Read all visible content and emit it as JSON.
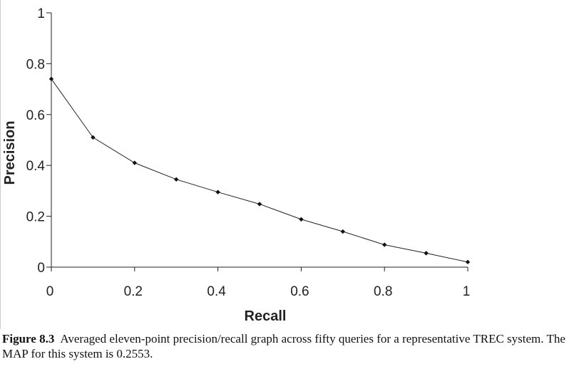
{
  "chart_data": {
    "type": "line",
    "xlabel": "Recall",
    "ylabel": "Precision",
    "xlim": [
      0,
      1
    ],
    "ylim": [
      0,
      1
    ],
    "x_ticks": [
      "0",
      "0.2",
      "0.4",
      "0.6",
      "0.8",
      "1"
    ],
    "y_ticks": [
      "0",
      "0.2",
      "0.4",
      "0.6",
      "0.8",
      "1"
    ],
    "grid": false,
    "series": [
      {
        "x": [
          0,
          0.1,
          0.2,
          0.3,
          0.4,
          0.5,
          0.6,
          0.7,
          0.8,
          0.9,
          1.0
        ],
        "y": [
          0.74,
          0.51,
          0.41,
          0.345,
          0.295,
          0.248,
          0.188,
          0.14,
          0.088,
          0.055,
          0.02
        ]
      }
    ],
    "colors": {
      "line": "#222222",
      "marker": "#111111",
      "axis": "#222222"
    }
  },
  "caption": {
    "label": "Figure 8.3",
    "text": "Averaged eleven-point precision/recall graph across fifty queries for a representative TREC system. The MAP for this system is 0.2553."
  }
}
